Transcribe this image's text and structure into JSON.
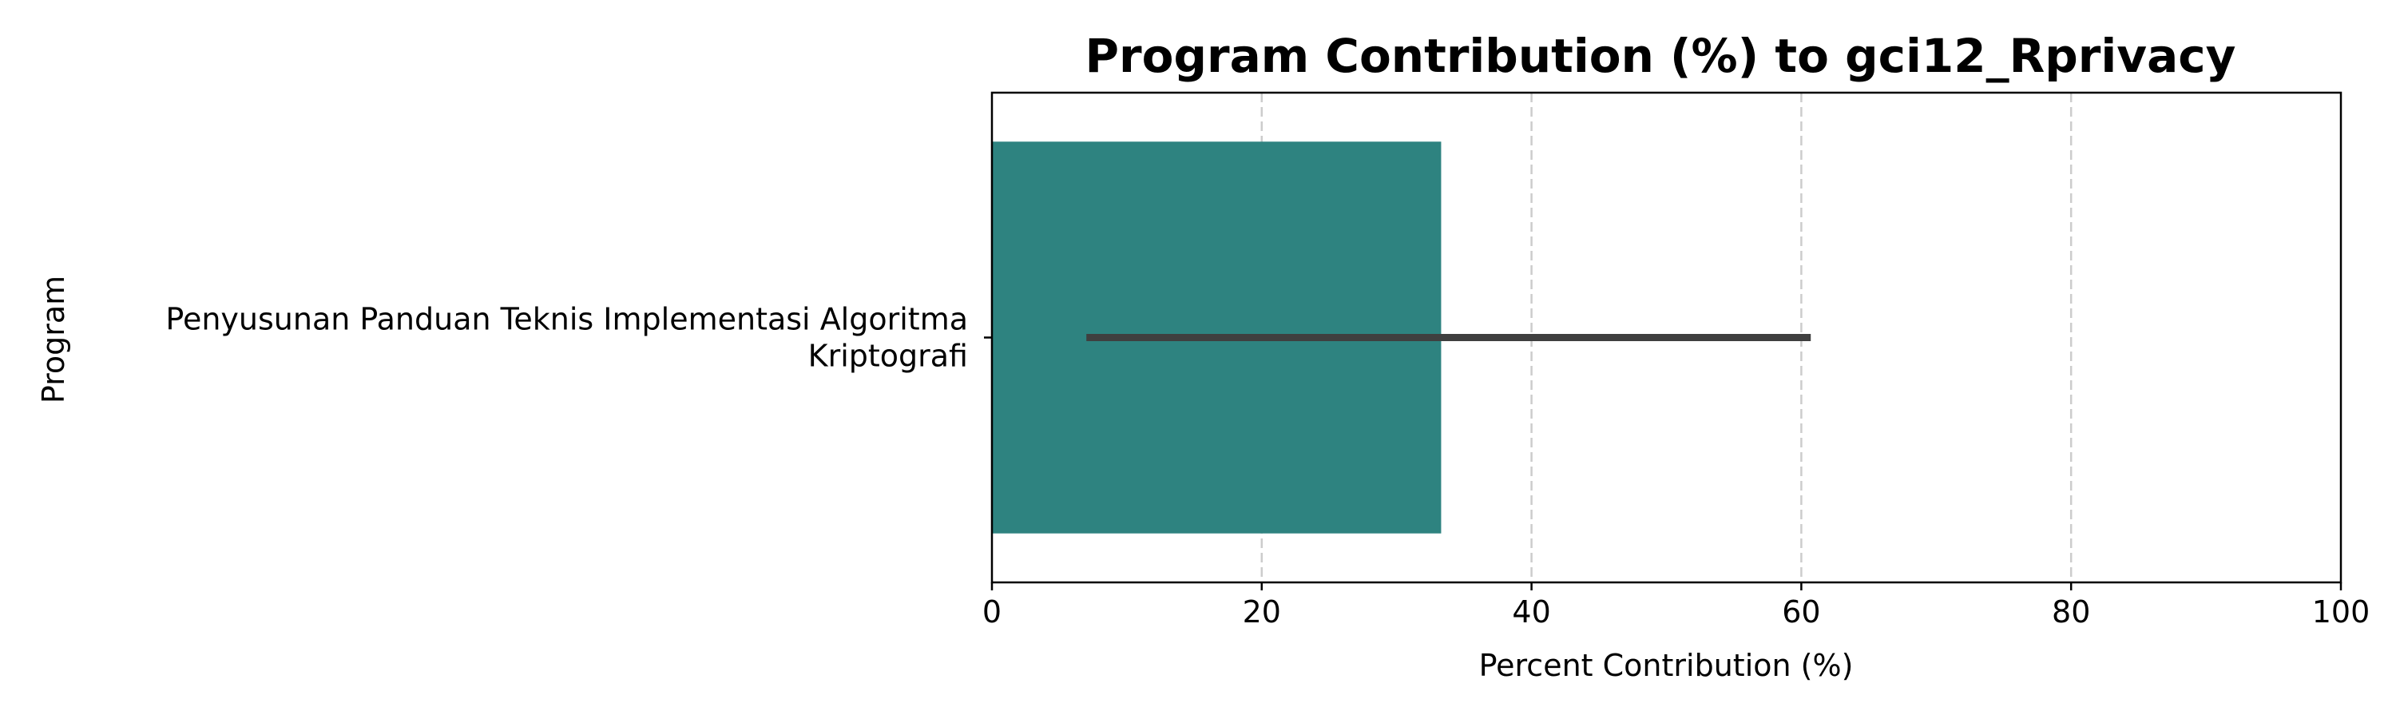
{
  "chart_data": {
    "type": "bar",
    "orientation": "horizontal",
    "title": "Program Contribution (%) to gci12_Rprivacy",
    "xlabel": "Percent Contribution (%)",
    "ylabel": "Program",
    "categories": [
      [
        "Penyusunan Panduan Teknis Implementasi Algoritma",
        "Kriptografi"
      ]
    ],
    "values": [
      33.3
    ],
    "error_low": [
      7.0
    ],
    "error_high": [
      60.7
    ],
    "xlim": [
      0,
      100
    ],
    "xticks": [
      "0",
      "20",
      "40",
      "60",
      "80",
      "100"
    ],
    "grid": "x-dashed",
    "bar_color": "#2e8380",
    "errorbar_color": "#3f3f3f"
  }
}
